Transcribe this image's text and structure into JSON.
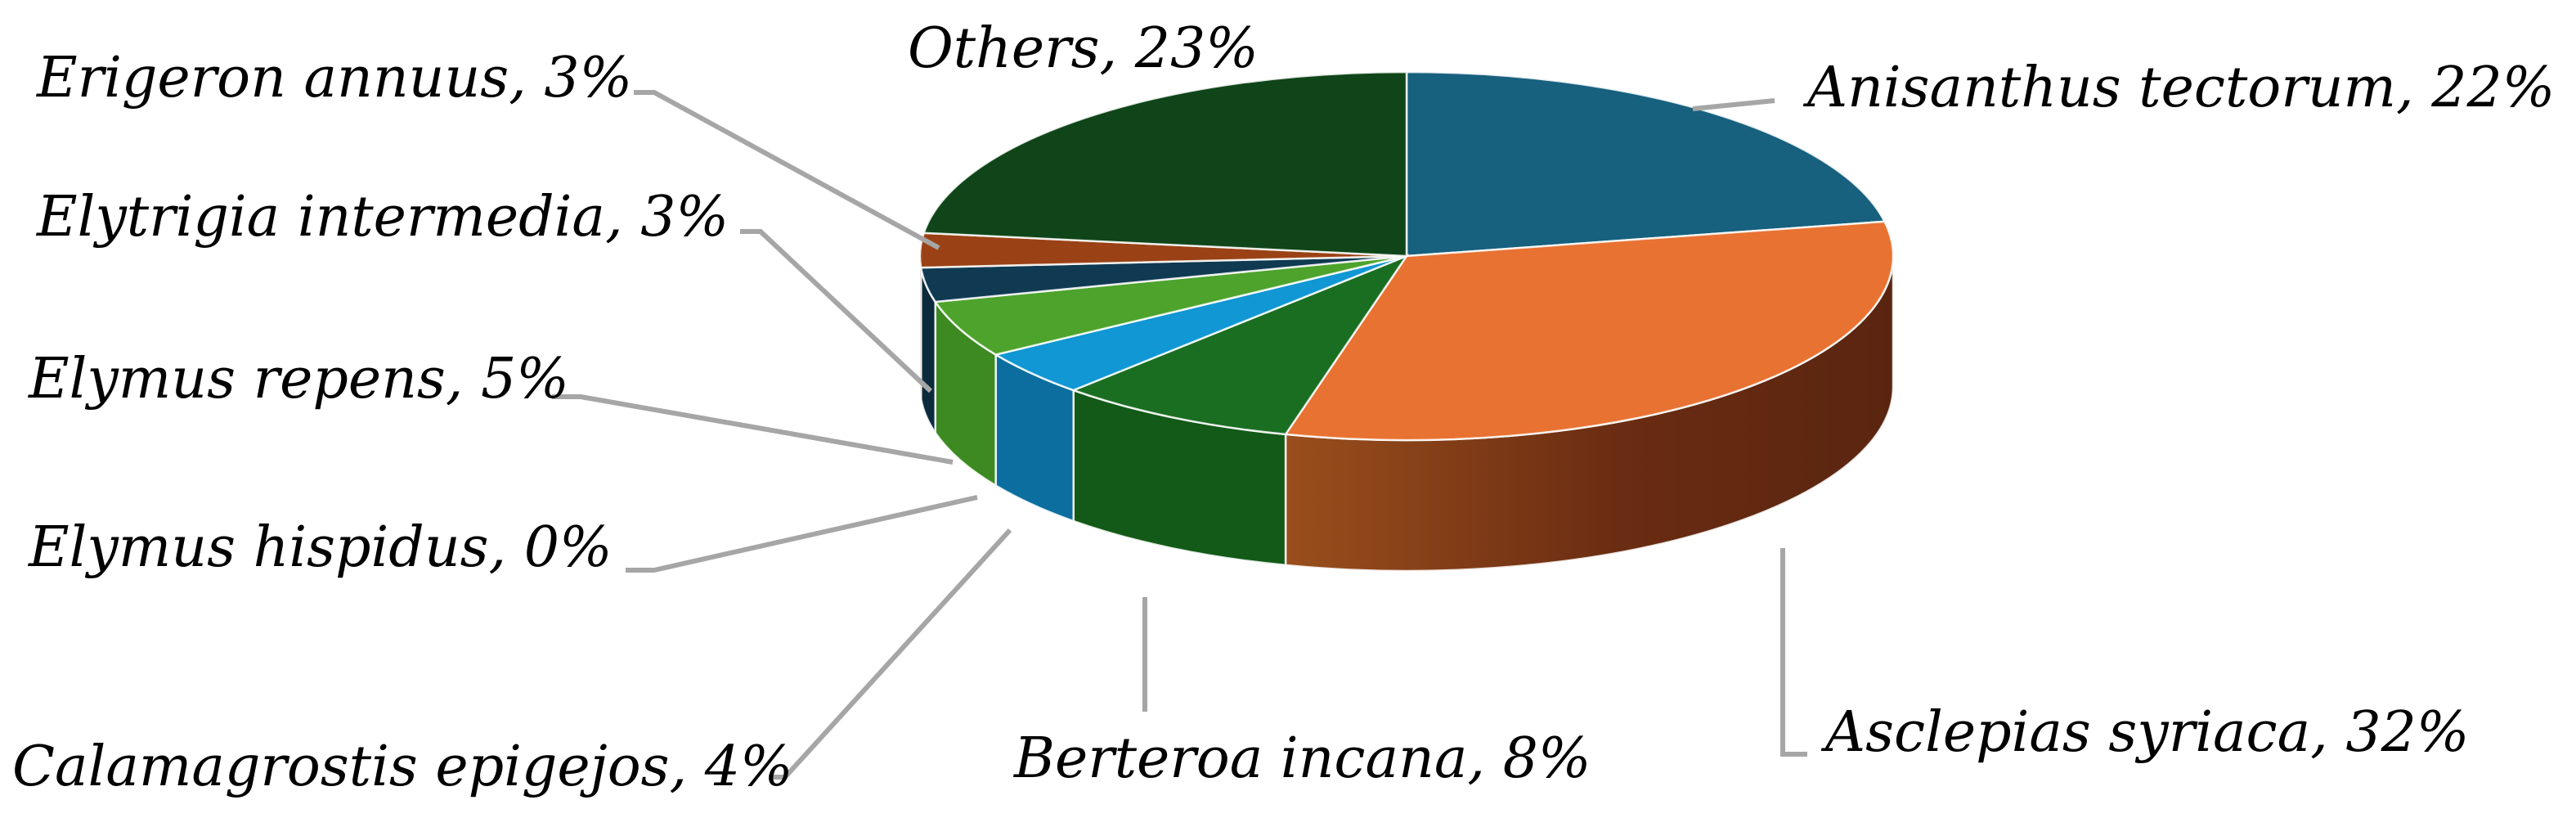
{
  "chart_data": {
    "type": "pie",
    "title": "",
    "style": "3d",
    "categories": [
      "Anisanthus tectorum",
      "Asclepias syriaca",
      "Berteroa incana",
      "Calamagrostis epigejos",
      "Elymus hispidus",
      "Elymus repens",
      "Elytrigia intermedia",
      "Erigeron annuus",
      "Others"
    ],
    "values": [
      22,
      32,
      8,
      4,
      0,
      5,
      3,
      3,
      23
    ],
    "colors": [
      "#17607e",
      "#e87232",
      "#1a6e22",
      "#1097d4",
      "#0c7cab",
      "#4ea32c",
      "#0f3a52",
      "#9a4215",
      "#0f4518"
    ],
    "side_colors": [
      "#0e3d52",
      "#6a2c12",
      "#135a18",
      "#0b6e9e",
      "#0c7cab",
      "#3d8a22",
      "#0b2b3d",
      "#6e2f0e",
      "#0b3212"
    ],
    "labels": [
      "Anisanthus tectorum, 22%",
      "Asclepias syriaca, 32%",
      "Berteroa incana, 8%",
      "Calamagrostis epigejos, 4%",
      "Elymus hispidus, 0%",
      "Elymus repens, 5%",
      "Elytrigia intermedia, 3%",
      "Erigeron annuus, 3%",
      "Others, 23%"
    ],
    "legend": "none",
    "data_labels": "outside-with-leader-lines"
  }
}
